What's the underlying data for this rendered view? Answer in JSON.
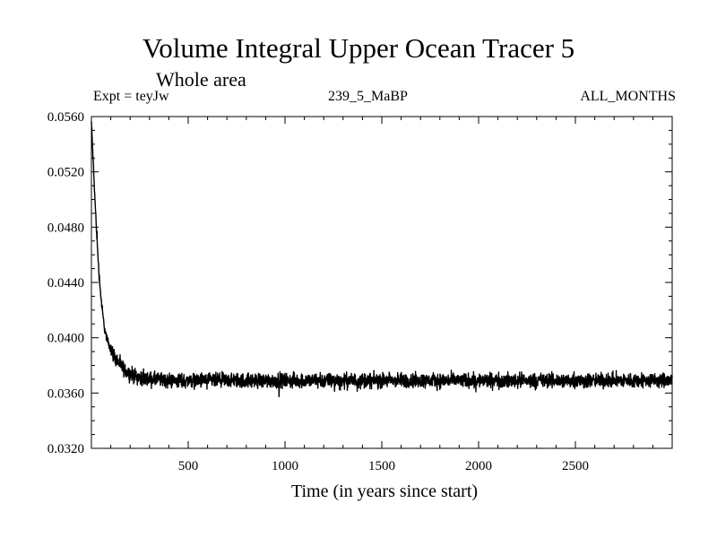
{
  "chart_data": {
    "type": "line",
    "title": "Volume Integral Upper Ocean Tracer 5",
    "subtitle": "Whole area",
    "header_left": "Expt = teyJw",
    "header_center": "239_5_MaBP",
    "header_right": "ALL_MONTHS",
    "xlabel": "Time (in years since start)",
    "ylabel": "",
    "xlim": [
      0,
      3000
    ],
    "ylim": [
      0.032,
      0.056
    ],
    "x_ticks": [
      500,
      1000,
      1500,
      2000,
      2500
    ],
    "x_tick_labels": [
      "500",
      "1000",
      "1500",
      "2000",
      "2500"
    ],
    "y_ticks": [
      0.032,
      0.036,
      0.04,
      0.044,
      0.048,
      0.052,
      0.056
    ],
    "y_tick_labels": [
      "0.0320",
      "0.0360",
      "0.0400",
      "0.0440",
      "0.0480",
      "0.0520",
      "0.0560"
    ],
    "grid": false,
    "series": [
      {
        "color": "#000000",
        "x": [
          0,
          10,
          20,
          30,
          40,
          50,
          60,
          70,
          80,
          100,
          120,
          150,
          175,
          200,
          250,
          300,
          400,
          500,
          600,
          800,
          1000,
          1200,
          1500,
          1700,
          2000,
          2200,
          2500,
          2800,
          3000
        ],
        "y": [
          0.0556,
          0.0525,
          0.0495,
          0.0468,
          0.0445,
          0.0428,
          0.0415,
          0.0405,
          0.0399,
          0.0392,
          0.0386,
          0.038,
          0.0376,
          0.0374,
          0.0371,
          0.037,
          0.0369,
          0.0369,
          0.0369,
          0.0369,
          0.0369,
          0.0369,
          0.0369,
          0.0369,
          0.0369,
          0.0369,
          0.0369,
          0.0369,
          0.0369
        ],
        "noise_amplitude": 0.0007
      }
    ]
  }
}
